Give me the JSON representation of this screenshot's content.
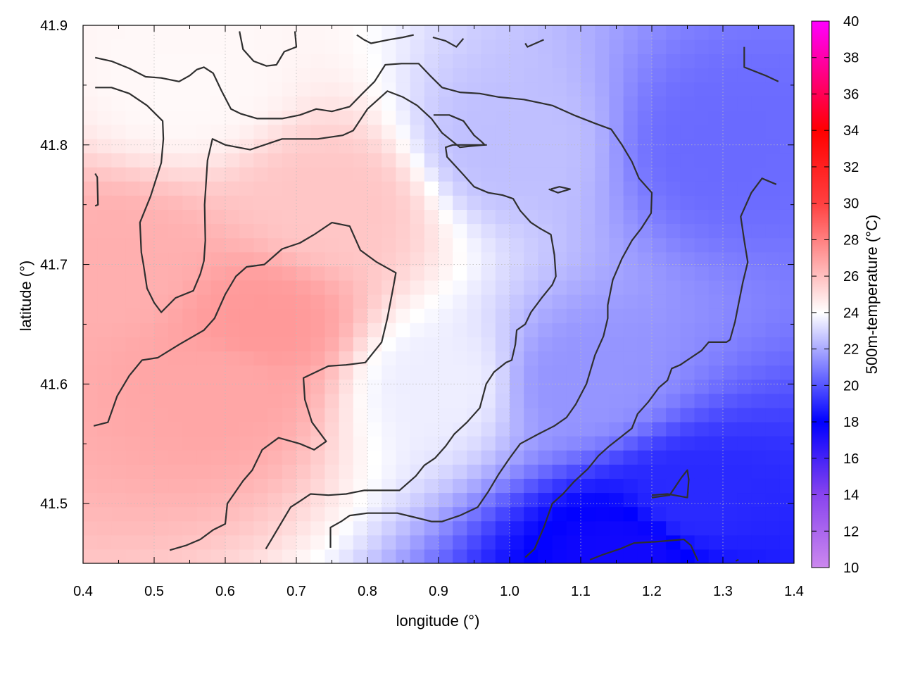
{
  "chart_data": {
    "type": "heatmap",
    "title": "",
    "xlabel": "longitude (°)",
    "ylabel": "latitude (°)",
    "colorbar_label": "500m-temperature (°C)",
    "xlim": [
      0.4,
      1.4
    ],
    "ylim": [
      41.45,
      41.9
    ],
    "xticks": [
      0.4,
      0.5,
      0.6,
      0.7,
      0.8,
      0.9,
      1.0,
      1.1,
      1.2,
      1.3,
      1.4
    ],
    "yticks": [
      41.5,
      41.6,
      41.7,
      41.8,
      41.9
    ],
    "xtick_labels": [
      "0.4",
      "0.5",
      "0.6",
      "0.7",
      "0.8",
      "0.9",
      "1.0",
      "1.1",
      "1.2",
      "1.3",
      "1.4"
    ],
    "ytick_labels": [
      "41.5",
      "41.6",
      "41.7",
      "41.8",
      "41.9"
    ],
    "colorbar_range": [
      10,
      40
    ],
    "colorbar_ticks": [
      10,
      12,
      14,
      16,
      18,
      20,
      22,
      24,
      26,
      28,
      30,
      32,
      34,
      36,
      38,
      40
    ],
    "colorbar_tick_labels": [
      "10",
      "12",
      "14",
      "16",
      "18",
      "20",
      "22",
      "24",
      "26",
      "28",
      "30",
      "32",
      "34",
      "36",
      "38",
      "40"
    ],
    "colorscale": [
      {
        "value": 10,
        "color": "#cc88ee"
      },
      {
        "value": 14,
        "color": "#8844ee"
      },
      {
        "value": 18,
        "color": "#0000ff"
      },
      {
        "value": 24,
        "color": "#ffffff"
      },
      {
        "value": 30,
        "color": "#ff4040"
      },
      {
        "value": 34,
        "color": "#ff0000"
      },
      {
        "value": 40,
        "color": "#ff00ff"
      }
    ],
    "grid": true,
    "field_samples": [
      {
        "lon": 0.45,
        "lat": 41.7,
        "value": 26.5
      },
      {
        "lon": 0.6,
        "lat": 41.6,
        "value": 26.8
      },
      {
        "lon": 0.65,
        "lat": 41.65,
        "value": 27.2
      },
      {
        "lon": 0.75,
        "lat": 41.75,
        "value": 25.8
      },
      {
        "lon": 0.55,
        "lat": 41.85,
        "value": 24.2
      },
      {
        "lon": 0.9,
        "lat": 41.6,
        "value": 23.6
      },
      {
        "lon": 1.0,
        "lat": 41.8,
        "value": 22.5
      },
      {
        "lon": 1.1,
        "lat": 41.6,
        "value": 21.5
      },
      {
        "lon": 1.3,
        "lat": 41.8,
        "value": 20.5
      },
      {
        "lon": 1.25,
        "lat": 41.5,
        "value": 19.0
      },
      {
        "lon": 1.17,
        "lat": 41.46,
        "value": 17.5
      }
    ],
    "contours": [
      [
        [
          0.415,
          41.565
        ],
        [
          0.435,
          41.568
        ],
        [
          0.448,
          41.59
        ],
        [
          0.465,
          41.607
        ],
        [
          0.483,
          41.62
        ],
        [
          0.505,
          41.622
        ],
        [
          0.535,
          41.633
        ],
        [
          0.57,
          41.645
        ],
        [
          0.585,
          41.655
        ],
        [
          0.6,
          41.675
        ],
        [
          0.615,
          41.69
        ],
        [
          0.63,
          41.698
        ],
        [
          0.655,
          41.7
        ],
        [
          0.68,
          41.713
        ],
        [
          0.705,
          41.718
        ],
        [
          0.725,
          41.725
        ],
        [
          0.75,
          41.735
        ],
        [
          0.775,
          41.732
        ],
        [
          0.79,
          41.712
        ],
        [
          0.813,
          41.702
        ],
        [
          0.84,
          41.693
        ],
        [
          0.836,
          41.68
        ],
        [
          0.828,
          41.655
        ],
        [
          0.82,
          41.635
        ],
        [
          0.797,
          41.618
        ],
        [
          0.77,
          41.616
        ],
        [
          0.745,
          41.615
        ],
        [
          0.71,
          41.605
        ],
        [
          0.712,
          41.587
        ],
        [
          0.722,
          41.568
        ],
        [
          0.742,
          41.552
        ],
        [
          0.725,
          41.545
        ],
        [
          0.705,
          41.55
        ],
        [
          0.675,
          41.555
        ],
        [
          0.668,
          41.552
        ],
        [
          0.652,
          41.545
        ],
        [
          0.638,
          41.528
        ],
        [
          0.625,
          41.519
        ],
        [
          0.603,
          41.5
        ],
        [
          0.6,
          41.483
        ],
        [
          0.583,
          41.478
        ],
        [
          0.565,
          41.47
        ],
        [
          0.545,
          41.465
        ],
        [
          0.522,
          41.461
        ]
      ],
      [
        [
          0.417,
          41.776
        ],
        [
          0.42,
          41.773
        ],
        [
          0.421,
          41.75
        ],
        [
          0.417,
          41.749
        ]
      ],
      [
        [
          0.417,
          41.848
        ],
        [
          0.44,
          41.848
        ],
        [
          0.465,
          41.843
        ],
        [
          0.49,
          41.833
        ],
        [
          0.512,
          41.82
        ],
        [
          0.513,
          41.805
        ],
        [
          0.51,
          41.785
        ],
        [
          0.495,
          41.757
        ],
        [
          0.48,
          41.735
        ],
        [
          0.482,
          41.71
        ],
        [
          0.485,
          41.7
        ],
        [
          0.49,
          41.68
        ],
        [
          0.5,
          41.668
        ],
        [
          0.51,
          41.66
        ],
        [
          0.53,
          41.672
        ],
        [
          0.555,
          41.678
        ],
        [
          0.565,
          41.692
        ],
        [
          0.57,
          41.703
        ],
        [
          0.572,
          41.72
        ],
        [
          0.571,
          41.75
        ],
        [
          0.575,
          41.787
        ],
        [
          0.582,
          41.805
        ],
        [
          0.6,
          41.8
        ],
        [
          0.635,
          41.796
        ],
        [
          0.68,
          41.805
        ],
        [
          0.73,
          41.805
        ],
        [
          0.765,
          41.808
        ],
        [
          0.78,
          41.812
        ],
        [
          0.8,
          41.83
        ],
        [
          0.828,
          41.845
        ],
        [
          0.85,
          41.84
        ],
        [
          0.87,
          41.833
        ],
        [
          0.89,
          41.822
        ],
        [
          0.905,
          41.81
        ],
        [
          0.93,
          41.798
        ],
        [
          0.945,
          41.799
        ],
        [
          0.965,
          41.8
        ],
        [
          0.96,
          41.803
        ],
        [
          0.95,
          41.808
        ],
        [
          0.935,
          41.82
        ],
        [
          0.915,
          41.825
        ],
        [
          0.893,
          41.825
        ]
      ],
      [
        [
          0.417,
          41.873
        ],
        [
          0.44,
          41.87
        ],
        [
          0.465,
          41.864
        ],
        [
          0.488,
          41.857
        ],
        [
          0.51,
          41.856
        ],
        [
          0.535,
          41.853
        ],
        [
          0.55,
          41.858
        ],
        [
          0.56,
          41.863
        ],
        [
          0.57,
          41.865
        ],
        [
          0.583,
          41.86
        ],
        [
          0.595,
          41.845
        ],
        [
          0.608,
          41.83
        ],
        [
          0.622,
          41.826
        ],
        [
          0.645,
          41.822
        ],
        [
          0.68,
          41.822
        ],
        [
          0.705,
          41.825
        ],
        [
          0.728,
          41.83
        ],
        [
          0.75,
          41.828
        ],
        [
          0.775,
          41.832
        ],
        [
          0.793,
          41.843
        ],
        [
          0.81,
          41.853
        ],
        [
          0.825,
          41.867
        ],
        [
          0.848,
          41.868
        ],
        [
          0.872,
          41.868
        ],
        [
          0.888,
          41.858
        ],
        [
          0.905,
          41.848
        ],
        [
          0.93,
          41.844
        ],
        [
          0.958,
          41.843
        ],
        [
          0.985,
          41.84
        ],
        [
          1.02,
          41.838
        ],
        [
          1.06,
          41.833
        ],
        [
          1.09,
          41.825
        ],
        [
          1.12,
          41.818
        ],
        [
          1.143,
          41.813
        ],
        [
          1.158,
          41.8
        ],
        [
          1.172,
          41.786
        ],
        [
          1.182,
          41.772
        ],
        [
          1.2,
          41.76
        ],
        [
          1.199,
          41.743
        ],
        [
          1.185,
          41.73
        ],
        [
          1.172,
          41.72
        ],
        [
          1.158,
          41.705
        ],
        [
          1.145,
          41.687
        ],
        [
          1.138,
          41.666
        ],
        [
          1.138,
          41.655
        ],
        [
          1.132,
          41.64
        ],
        [
          1.12,
          41.624
        ],
        [
          1.108,
          41.6
        ],
        [
          1.093,
          41.583
        ],
        [
          1.08,
          41.572
        ],
        [
          1.063,
          41.565
        ],
        [
          1.04,
          41.558
        ],
        [
          1.015,
          41.55
        ],
        [
          1.0,
          41.538
        ],
        [
          0.985,
          41.525
        ],
        [
          0.97,
          41.51
        ],
        [
          0.955,
          41.497
        ],
        [
          0.93,
          41.49
        ],
        [
          0.905,
          41.485
        ],
        [
          0.89,
          41.485
        ],
        [
          0.87,
          41.488
        ],
        [
          0.842,
          41.492
        ],
        [
          0.8,
          41.492
        ],
        [
          0.775,
          41.49
        ],
        [
          0.763,
          41.485
        ],
        [
          0.748,
          41.48
        ],
        [
          0.748,
          41.463
        ]
      ],
      [
        [
          1.058,
          41.763
        ],
        [
          1.07,
          41.765
        ],
        [
          1.085,
          41.763
        ],
        [
          1.068,
          41.76
        ],
        [
          1.055,
          41.763
        ]
      ],
      [
        [
          0.657,
          41.462
        ],
        [
          0.67,
          41.475
        ],
        [
          0.68,
          41.485
        ],
        [
          0.692,
          41.497
        ],
        [
          0.705,
          41.502
        ],
        [
          0.72,
          41.508
        ],
        [
          0.745,
          41.507
        ],
        [
          0.77,
          41.508
        ],
        [
          0.795,
          41.511
        ],
        [
          0.845,
          41.511
        ],
        [
          0.868,
          41.523
        ],
        [
          0.88,
          41.532
        ],
        [
          0.895,
          41.538
        ],
        [
          0.91,
          41.548
        ],
        [
          0.922,
          41.558
        ],
        [
          0.94,
          41.568
        ],
        [
          0.958,
          41.58
        ],
        [
          0.967,
          41.6
        ],
        [
          0.978,
          41.61
        ],
        [
          0.995,
          41.618
        ],
        [
          1.003,
          41.62
        ],
        [
          1.008,
          41.633
        ],
        [
          1.01,
          41.645
        ],
        [
          1.022,
          41.65
        ],
        [
          1.03,
          41.66
        ],
        [
          1.045,
          41.672
        ],
        [
          1.06,
          41.683
        ],
        [
          1.065,
          41.69
        ],
        [
          1.063,
          41.708
        ],
        [
          1.058,
          41.725
        ],
        [
          1.043,
          41.73
        ],
        [
          1.03,
          41.735
        ],
        [
          1.015,
          41.745
        ],
        [
          1.005,
          41.755
        ],
        [
          0.99,
          41.758
        ],
        [
          0.97,
          41.76
        ],
        [
          0.95,
          41.765
        ],
        [
          0.935,
          41.775
        ],
        [
          0.912,
          41.79
        ],
        [
          0.91,
          41.798
        ],
        [
          0.92,
          41.8
        ],
        [
          0.95,
          41.8
        ],
        [
          0.968,
          41.8
        ]
      ],
      [
        [
          1.022,
          41.455
        ],
        [
          1.035,
          41.462
        ],
        [
          1.048,
          41.48
        ],
        [
          1.06,
          41.5
        ],
        [
          1.075,
          41.508
        ],
        [
          1.09,
          41.518
        ],
        [
          1.11,
          41.529
        ],
        [
          1.125,
          41.54
        ],
        [
          1.14,
          41.548
        ],
        [
          1.155,
          41.555
        ],
        [
          1.172,
          41.563
        ],
        [
          1.18,
          41.575
        ],
        [
          1.195,
          41.585
        ],
        [
          1.21,
          41.597
        ],
        [
          1.222,
          41.603
        ],
        [
          1.228,
          41.613
        ],
        [
          1.24,
          41.616
        ],
        [
          1.255,
          41.622
        ],
        [
          1.27,
          41.628
        ],
        [
          1.28,
          41.635
        ],
        [
          1.305,
          41.635
        ],
        [
          1.31,
          41.637
        ],
        [
          1.317,
          41.652
        ],
        [
          1.322,
          41.667
        ],
        [
          1.328,
          41.685
        ],
        [
          1.335,
          41.702
        ],
        [
          1.33,
          41.72
        ],
        [
          1.325,
          41.74
        ],
        [
          1.34,
          41.76
        ],
        [
          1.355,
          41.772
        ],
        [
          1.375,
          41.767
        ]
      ],
      [
        [
          1.2,
          41.507
        ],
        [
          1.222,
          41.508
        ],
        [
          1.25,
          41.505
        ],
        [
          1.252,
          41.52
        ],
        [
          1.25,
          41.528
        ],
        [
          1.242,
          41.522
        ],
        [
          1.225,
          41.507
        ],
        [
          1.2,
          41.505
        ]
      ],
      [
        [
          1.113,
          41.453
        ],
        [
          1.13,
          41.457
        ],
        [
          1.155,
          41.462
        ],
        [
          1.175,
          41.467
        ],
        [
          1.205,
          41.468
        ],
        [
          1.245,
          41.47
        ],
        [
          1.255,
          41.465
        ],
        [
          1.265,
          41.452
        ]
      ],
      [
        [
          1.33,
          41.882
        ],
        [
          1.33,
          41.865
        ],
        [
          1.36,
          41.858
        ],
        [
          1.378,
          41.853
        ]
      ],
      [
        [
          0.62,
          41.895
        ],
        [
          0.625,
          41.88
        ],
        [
          0.64,
          41.87
        ],
        [
          0.658,
          41.866
        ],
        [
          0.672,
          41.867
        ],
        [
          0.683,
          41.878
        ],
        [
          0.7,
          41.882
        ],
        [
          0.698,
          41.895
        ]
      ],
      [
        [
          0.785,
          41.892
        ],
        [
          0.795,
          41.888
        ],
        [
          0.805,
          41.885
        ],
        [
          0.83,
          41.888
        ],
        [
          0.85,
          41.89
        ],
        [
          0.865,
          41.892
        ]
      ],
      [
        [
          0.892,
          41.89
        ],
        [
          0.91,
          41.887
        ],
        [
          0.925,
          41.882
        ],
        [
          0.935,
          41.889
        ]
      ],
      [
        [
          1.022,
          41.885
        ],
        [
          1.025,
          41.882
        ],
        [
          1.048,
          41.888
        ]
      ],
      [
        [
          1.318,
          41.452
        ],
        [
          1.322,
          41.453
        ]
      ]
    ]
  }
}
